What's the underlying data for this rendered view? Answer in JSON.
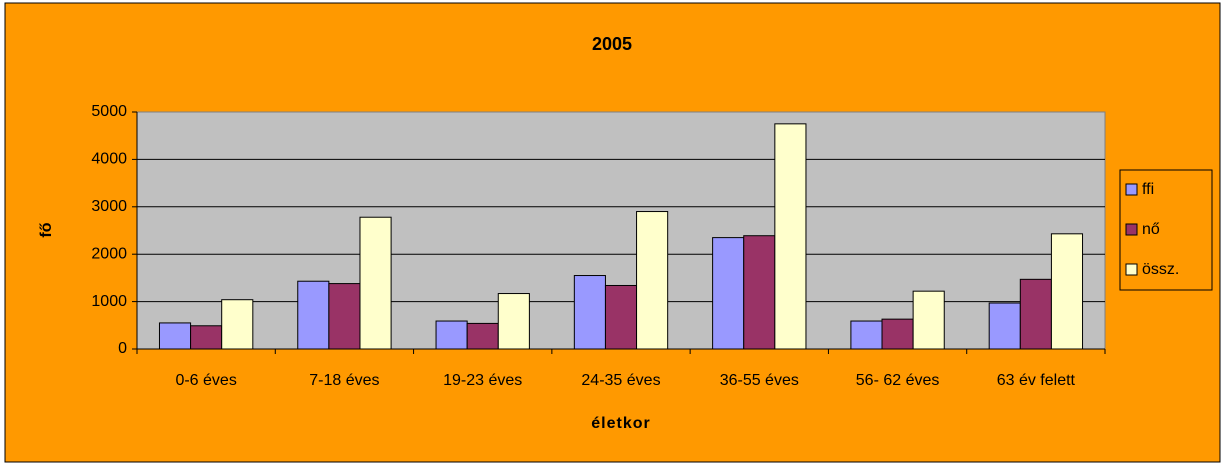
{
  "chart_data": {
    "type": "bar",
    "title": "2005",
    "x_label": "életkor",
    "y_label": "fő",
    "categories": [
      "0-6 éves",
      "7-18 éves",
      "19-23 éves",
      "24-35 éves",
      "36-55 éves",
      "56- 62 éves",
      "63 év felett"
    ],
    "series": [
      {
        "name": "ffi",
        "color": "#9999ff",
        "values": [
          550,
          1430,
          590,
          1550,
          2350,
          590,
          970
        ]
      },
      {
        "name": "nő",
        "color": "#993366",
        "values": [
          490,
          1380,
          540,
          1340,
          2390,
          630,
          1470
        ]
      },
      {
        "name": "össz.",
        "color": "#ffffcc",
        "values": [
          1040,
          2780,
          1170,
          2900,
          4750,
          1220,
          2430
        ]
      }
    ],
    "ylim": [
      0,
      5000
    ],
    "yticks": [
      0,
      1000,
      2000,
      3000,
      4000,
      5000
    ],
    "grid": true,
    "legend": "right"
  }
}
